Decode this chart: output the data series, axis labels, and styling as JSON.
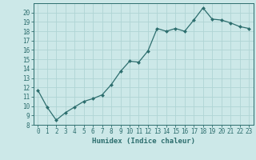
{
  "x": [
    0,
    1,
    2,
    3,
    4,
    5,
    6,
    7,
    8,
    9,
    10,
    11,
    12,
    13,
    14,
    15,
    16,
    17,
    18,
    19,
    20,
    21,
    22,
    23
  ],
  "y": [
    11.7,
    9.9,
    8.5,
    9.3,
    9.9,
    10.5,
    10.8,
    11.2,
    12.3,
    13.7,
    14.8,
    14.7,
    15.9,
    18.3,
    18.0,
    18.3,
    18.0,
    19.2,
    20.5,
    19.3,
    19.2,
    18.9,
    18.5,
    18.3
  ],
  "xlabel": "Humidex (Indice chaleur)",
  "line_color": "#2d6e6e",
  "marker": "D",
  "marker_size": 2.0,
  "bg_color": "#cce8e8",
  "grid_color": "#b0d4d4",
  "xlim": [
    -0.5,
    23.5
  ],
  "ylim": [
    8,
    21
  ],
  "yticks": [
    8,
    9,
    10,
    11,
    12,
    13,
    14,
    15,
    16,
    17,
    18,
    19,
    20
  ],
  "xticks": [
    0,
    1,
    2,
    3,
    4,
    5,
    6,
    7,
    8,
    9,
    10,
    11,
    12,
    13,
    14,
    15,
    16,
    17,
    18,
    19,
    20,
    21,
    22,
    23
  ],
  "font_color": "#2d6e6e",
  "tick_fontsize": 5.5,
  "xlabel_fontsize": 6.5,
  "linewidth": 0.9
}
